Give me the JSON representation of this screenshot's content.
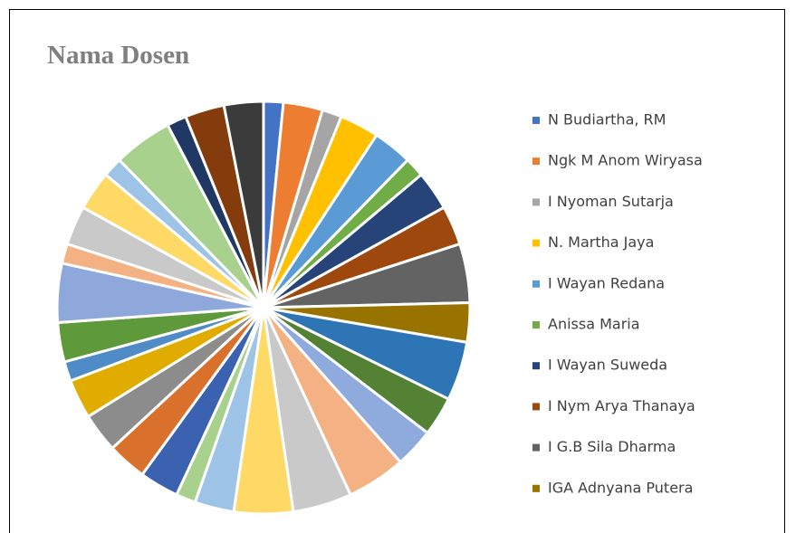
{
  "chart_data": {
    "type": "pie",
    "title": "Nama Dosen",
    "categories": [
      "N Budiartha, RM",
      "Ngk M Anom Wiryasa",
      "I Nyoman Sutarja",
      "N. Martha Jaya",
      "I Wayan Redana",
      "Anissa Maria",
      "I Wayan Suweda",
      "I Nym Arya Thanaya",
      "I G.B Sila Dharma",
      "IGA Adnyana Putera",
      null,
      null,
      null,
      null,
      null,
      null,
      null,
      null,
      null,
      null,
      null,
      null,
      null,
      null,
      null,
      null,
      null,
      null,
      null,
      null,
      null,
      null,
      null
    ],
    "values": [
      1,
      2,
      1,
      2,
      2,
      1,
      2,
      2,
      3,
      2,
      3,
      2,
      2,
      3,
      3,
      3,
      2,
      1,
      2,
      2,
      2,
      2,
      1,
      2,
      3,
      1,
      2,
      2,
      1,
      3,
      1,
      2,
      2
    ],
    "colors": [
      "#4472c4",
      "#ed7d31",
      "#a5a5a5",
      "#ffc000",
      "#5b9bd5",
      "#70ad47",
      "#264478",
      "#9e480e",
      "#636363",
      "#997300",
      "#2e75b6",
      "#548235",
      "#8faadc",
      "#f4b183",
      "#c9c9c9",
      "#ffd966",
      "#9dc3e6",
      "#a9d18e",
      "#3a62b0",
      "#d9702c",
      "#8c8c8c",
      "#e0ac00",
      "#4f8bc7",
      "#5e9a3c",
      "#8fa8dc",
      "#f4b183",
      "#c9c9c9",
      "#ffd966",
      "#9dc3e6",
      "#a9d18e",
      "#203864",
      "#843c0c",
      "#3b3b3b"
    ],
    "legend": "right"
  }
}
